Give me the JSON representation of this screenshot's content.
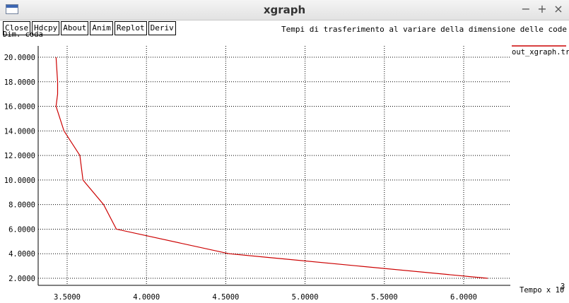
{
  "window": {
    "title": "xgraph",
    "controls": [
      "−",
      "+",
      "×"
    ]
  },
  "toolbar": {
    "buttons": [
      "Close",
      "Hdcpy",
      "About",
      "Anim",
      "Replot",
      "Deriv"
    ]
  },
  "chart_data": {
    "type": "line",
    "title": "Tempi di trasferimento al variare della dimensione delle code",
    "ylabel": "Dim. coda",
    "xlabel": "Tempo x 10",
    "xlabel_exponent": "3",
    "xlim": [
      3.42,
      6.3
    ],
    "ylim": [
      1.8,
      20.3
    ],
    "x_ticks": [
      "3.5000",
      "4.0000",
      "4.5000",
      "5.0000",
      "5.5000",
      "6.0000"
    ],
    "y_ticks": [
      "2.0000",
      "4.0000",
      "6.0000",
      "8.0000",
      "10.0000",
      "12.0000",
      "14.0000",
      "16.0000",
      "18.0000",
      "20.0000"
    ],
    "grid": true,
    "legend_position": "top-right",
    "series": [
      {
        "name": "out_xgraph.tr",
        "color": "#cc0000",
        "x": [
          3.43,
          3.44,
          3.44,
          3.43,
          3.48,
          3.58,
          3.6,
          3.73,
          3.81,
          4.52,
          6.15
        ],
        "y": [
          20.0,
          18.0,
          17.0,
          16.0,
          14.0,
          12.0,
          10.0,
          8.0,
          6.0,
          4.0,
          2.0
        ]
      }
    ]
  }
}
